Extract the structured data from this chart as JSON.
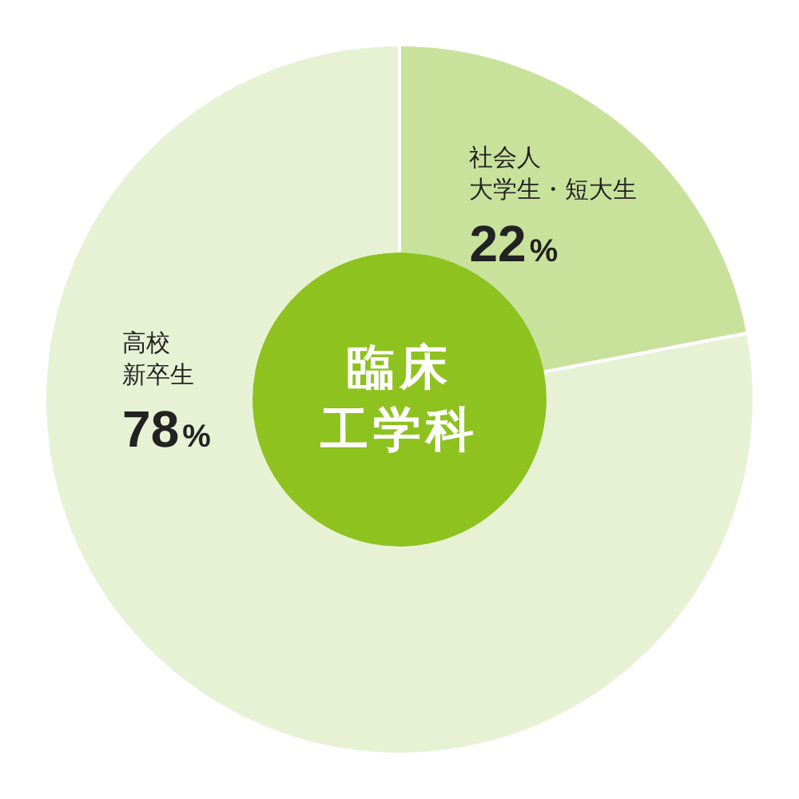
{
  "chart_data": {
    "type": "donut",
    "title": "臨床工学科",
    "categories": [
      "社会人大学生・短大生",
      "高校新卒生"
    ],
    "values": [
      22,
      78
    ],
    "colors": [
      "#c8e29c",
      "#e7f2d5"
    ],
    "value_labels": [
      "22%",
      "78%"
    ],
    "legend": false
  }
}
